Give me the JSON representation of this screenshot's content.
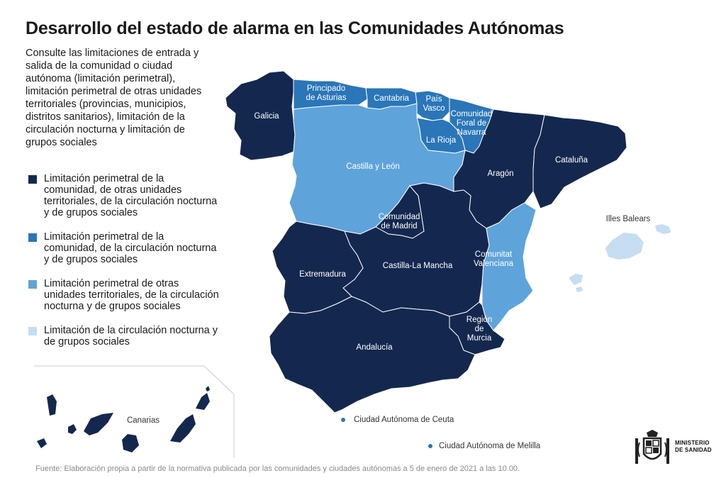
{
  "title": "Desarrollo del estado de alarma en las Comunidades Autónomas",
  "intro": "Consulte las limitaciones de entrada y salida de la comunidad o ciudad autónoma (limitación perimetral), limitación perimetral de otras unidades territoriales (provincias, municipios, distritos sanitarios), limitación de la circulación nocturna y limitación de grupos sociales",
  "colors": {
    "level1": "#14284f",
    "level2": "#2a76b8",
    "level3": "#5fa3db",
    "level4": "#c6ddf2"
  },
  "legend": [
    {
      "level": "level1",
      "label": "Limitación perimetral de la comunidad, de otras unidades territoriales, de la circulación nocturna y de grupos sociales"
    },
    {
      "level": "level2",
      "label": "Limitación perimetral de la comunidad, de la circulación nocturna y de grupos sociales"
    },
    {
      "level": "level3",
      "label": "Limitación perimetral de otras unidades territoriales, de la circulación nocturna y de grupos sociales"
    },
    {
      "level": "level4",
      "label": "Limitación de la circulación nocturna y de grupos sociales"
    }
  ],
  "regions": [
    {
      "id": "galicia",
      "name": "Galicia",
      "level": "level1"
    },
    {
      "id": "asturias",
      "name": "Principado de Asturias",
      "level": "level2"
    },
    {
      "id": "cantabria",
      "name": "Cantabria",
      "level": "level2"
    },
    {
      "id": "pais-vasco",
      "name": "País Vasco",
      "level": "level2"
    },
    {
      "id": "navarra",
      "name": "Comunidad Foral de Navarra",
      "level": "level2"
    },
    {
      "id": "la-rioja",
      "name": "La Rioja",
      "level": "level2"
    },
    {
      "id": "castilla-leon",
      "name": "Castilla y León",
      "level": "level3"
    },
    {
      "id": "aragon",
      "name": "Aragón",
      "level": "level1"
    },
    {
      "id": "cataluna",
      "name": "Cataluña",
      "level": "level1"
    },
    {
      "id": "madrid",
      "name": "Comunidad de Madrid",
      "level": "level1"
    },
    {
      "id": "castilla-la-mancha",
      "name": "Castilla-La Mancha",
      "level": "level1"
    },
    {
      "id": "extremadura",
      "name": "Extremadura",
      "level": "level1"
    },
    {
      "id": "valencia",
      "name": "Comunitat Valenciana",
      "level": "level3"
    },
    {
      "id": "murcia",
      "name": "Región de Murcia",
      "level": "level1"
    },
    {
      "id": "andalucia",
      "name": "Andalucía",
      "level": "level1"
    },
    {
      "id": "baleares",
      "name": "Illes Balears",
      "level": "level4"
    },
    {
      "id": "canarias",
      "name": "Canarias",
      "level": "level1"
    },
    {
      "id": "ceuta",
      "name": "Ciudad Autónoma de Ceuta",
      "level": "level2"
    },
    {
      "id": "melilla",
      "name": "Ciudad Autónoma de Melilla",
      "level": "level2"
    }
  ],
  "labels": {
    "galicia": [
      "Galicia"
    ],
    "asturias": [
      "Principado",
      "de Asturias"
    ],
    "cantabria": [
      "Cantabria"
    ],
    "pais-vasco": [
      "País",
      "Vasco"
    ],
    "navarra": [
      "Comunidad",
      "Foral de",
      "Navarra"
    ],
    "la-rioja": [
      "La Rioja"
    ],
    "castilla-leon": [
      "Castilla y León"
    ],
    "aragon": [
      "Aragón"
    ],
    "cataluna": [
      "Cataluña"
    ],
    "madrid": [
      "Comunidad",
      "de Madrid"
    ],
    "castilla-la-mancha": [
      "Castilla-La Mancha"
    ],
    "extremadura": [
      "Extremadura"
    ],
    "valencia": [
      "Comunitat",
      "Valenciana"
    ],
    "murcia": [
      "Región",
      "de",
      "Murcia"
    ],
    "andalucia": [
      "Andalucía"
    ],
    "baleares": [
      "Illes Balears"
    ],
    "canarias": [
      "Canarias"
    ],
    "ceuta": [
      "Ciudad Autónoma de Ceuta"
    ],
    "melilla": [
      "Ciudad Autónoma de Melilla"
    ]
  },
  "footer": "Fuente: Elaboración propia a partir de la normativa publicada por las comunidades y ciudades autónomas a 5 de enero de 2021 a las 10.00.",
  "ministry": {
    "line1": "MINISTERIO",
    "line2": "DE SANIDAD",
    "emblem": "coat-of-arms-icon"
  }
}
